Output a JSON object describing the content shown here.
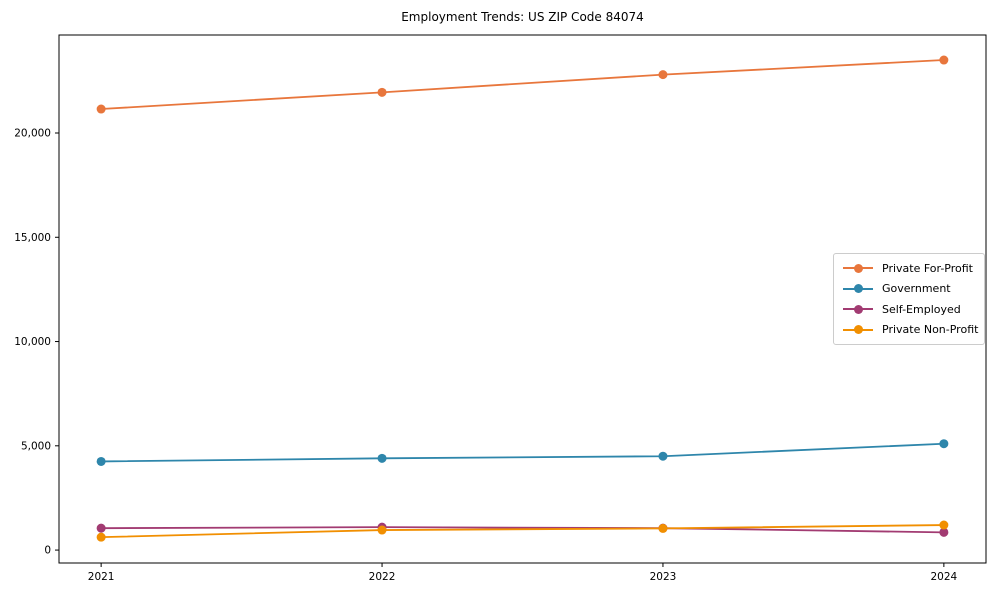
{
  "chart_data": {
    "type": "line",
    "title": "Employment Trends: US ZIP Code 84074",
    "xlabel": "",
    "ylabel": "",
    "x": [
      2021,
      2022,
      2023,
      2024
    ],
    "x_tick_labels": [
      "2021",
      "2022",
      "2023",
      "2024"
    ],
    "y_ticks": [
      0,
      5000,
      10000,
      15000,
      20000
    ],
    "y_tick_labels": [
      "0",
      "5,000",
      "10,000",
      "15,000",
      "20,000"
    ],
    "xlim": [
      2020.85,
      2024.15
    ],
    "ylim": [
      -620,
      24700
    ],
    "grid": false,
    "legend_position": "center-right",
    "series": [
      {
        "name": "Private For-Profit",
        "color": "#E8763C",
        "values": [
          21150,
          21950,
          22800,
          23500
        ]
      },
      {
        "name": "Government",
        "color": "#2E86AB",
        "values": [
          4250,
          4400,
          4500,
          5100
        ]
      },
      {
        "name": "Self-Employed",
        "color": "#A23B72",
        "values": [
          1050,
          1100,
          1050,
          850
        ]
      },
      {
        "name": "Private Non-Profit",
        "color": "#F18F01",
        "values": [
          620,
          960,
          1040,
          1200
        ]
      }
    ],
    "colors": {
      "axis": "#000000",
      "background": "#ffffff",
      "legend_border": "#cccccc"
    }
  }
}
